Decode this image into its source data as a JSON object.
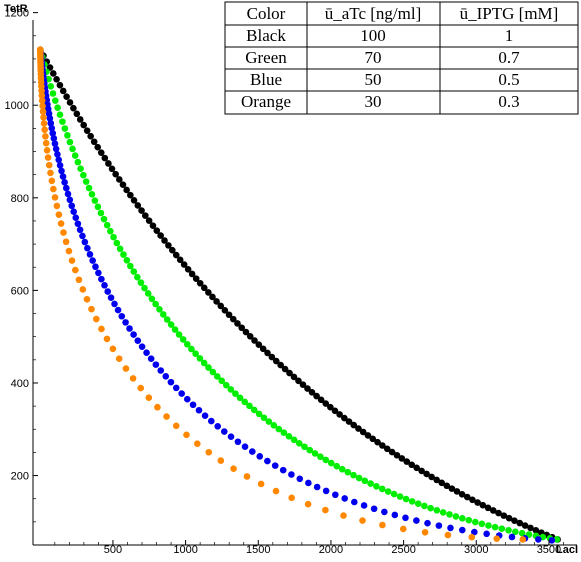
{
  "chart_data": {
    "type": "scatter",
    "title": "",
    "xlabel": "LacI",
    "ylabel": "TetR",
    "xlim": [
      -50,
      3700
    ],
    "ylim": [
      50,
      1210
    ],
    "x_ticks": [
      500,
      1000,
      1500,
      2000,
      2500,
      3000,
      3500
    ],
    "x_tick_labels": [
      "500",
      "1000",
      "1500",
      "2000",
      "2500",
      "3000",
      "3500"
    ],
    "y_ticks": [
      200,
      400,
      600,
      800,
      1000,
      1200
    ],
    "y_tick_labels": [
      "200",
      "400",
      "600",
      "800",
      "1000",
      "1200"
    ],
    "grid": false,
    "legend_table": {
      "headers": [
        "Color",
        "ū_aTc [ng/ml]",
        "ū_IPTG [mM]"
      ],
      "rows": [
        [
          "Black",
          "100",
          "1"
        ],
        [
          "Green",
          "70",
          "0.7"
        ],
        [
          "Blue",
          "50",
          "0.5"
        ],
        [
          "Orange",
          "30",
          "0.3"
        ]
      ],
      "placement": "top-right"
    },
    "series": [
      {
        "color": "#000000",
        "start": [
          0,
          1120
        ],
        "end": [
          3560,
          62
        ],
        "curve_mid": [
          0.37,
          0.27
        ],
        "n_points": 120,
        "spacing_bias": 1.0
      },
      {
        "color": "#00ee00",
        "start": [
          0,
          1120
        ],
        "end": [
          3555,
          62
        ],
        "curve_mid": [
          0.22,
          0.13
        ],
        "n_points": 115,
        "spacing_bias": 1.0
      },
      {
        "color": "#0000ee",
        "start": [
          0,
          1120
        ],
        "end": [
          3520,
          60
        ],
        "curve_mid": [
          0.09,
          0.06
        ],
        "n_points": 110,
        "spacing_bias": 1.6
      },
      {
        "color": "#ff8800",
        "start": [
          0,
          1120
        ],
        "end": [
          3320,
          62
        ],
        "curve_mid": [
          0.01,
          0.015
        ],
        "n_points": 80,
        "spacing_bias": 2.2
      }
    ]
  }
}
